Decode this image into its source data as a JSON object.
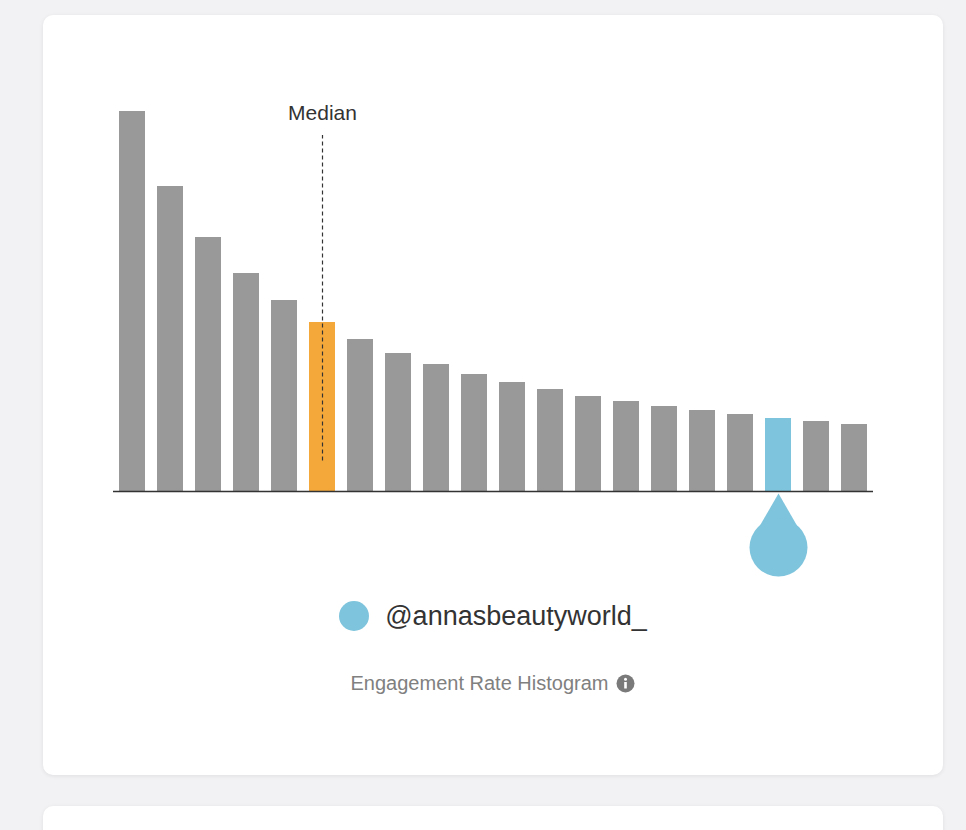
{
  "chart_data": {
    "type": "bar",
    "title": "Engagement Rate Histogram",
    "categories": [
      null,
      null,
      null,
      null,
      null,
      null,
      null,
      null,
      null,
      null,
      null,
      null,
      null,
      null,
      null,
      null,
      null,
      null,
      null,
      null
    ],
    "values": [
      380,
      305,
      254,
      218,
      191,
      169,
      152,
      138,
      127,
      117,
      109,
      102,
      95,
      90,
      85,
      81,
      77,
      73,
      70,
      67
    ],
    "colors": [
      "#999999",
      "#999999",
      "#999999",
      "#999999",
      "#999999",
      "#f5a83a",
      "#999999",
      "#999999",
      "#999999",
      "#999999",
      "#999999",
      "#999999",
      "#999999",
      "#999999",
      "#999999",
      "#999999",
      "#999999",
      "#7ec4dc",
      "#999999",
      "#999999"
    ],
    "ylim": [
      0,
      380
    ],
    "yticks": [],
    "tick_labels": false,
    "median": {
      "label": "Median",
      "position": 5
    },
    "highlight": {
      "name": "@annasbeautyworld_",
      "position": 17,
      "color": "#7ec4dc"
    }
  }
}
